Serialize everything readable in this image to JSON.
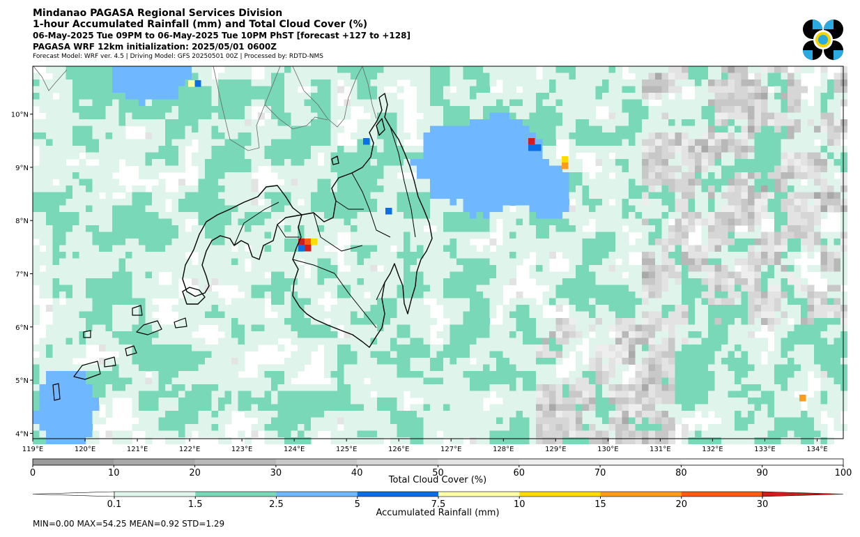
{
  "header": {
    "line1": "Mindanao PAGASA Regional Services Division",
    "line2": "1-hour Accumulated Rainfall (mm) and Total Cloud Cover (%)",
    "line3": "06-May-2025 Tue 09PM to 06-May-2025 Tue 10PM PhST [forecast +127 to +128]",
    "line4": "PAGASA WRF 12km initialization: 2025/05/01 0600Z",
    "line5": "Forecast Model: WRF ver. 4.5 | Driving Model: GFS 20250501 00Z | Processed by: RDTD-NMS"
  },
  "logo": {
    "name": "pagasa-logo"
  },
  "map": {
    "lon_labels": [
      "119°E",
      "120°E",
      "121°E",
      "122°E",
      "123°E",
      "124°E",
      "125°E",
      "126°E",
      "127°E",
      "128°E",
      "129°E",
      "130°E",
      "131°E",
      "132°E",
      "133°E",
      "134°E"
    ],
    "lat_labels": [
      "10°N",
      "9°N",
      "8°N",
      "7°N",
      "6°N",
      "5°N",
      "4°N"
    ],
    "lon_range": [
      119.0,
      134.5
    ],
    "lat_range": [
      3.9,
      10.9
    ],
    "land_outline_color": "#000000",
    "other_coast_color": "#555555"
  },
  "cloud_colorbar": {
    "title": "Total Cloud Cover (%)",
    "ticks": [
      "0",
      "10",
      "20",
      "30",
      "40",
      "50",
      "60",
      "70",
      "80",
      "90",
      "100"
    ],
    "colors": [
      "#9b9b9b",
      "#a9a9a9",
      "#b8b8b8",
      "#c8c8c8",
      "#d6d6d6",
      "#e3e3e3",
      "#eeeeee",
      "#f5f5f5",
      "#fbfbfb",
      "#ffffff"
    ]
  },
  "rain_colorbar": {
    "title": "Accumulated Rainfall (mm)",
    "ticks": [
      "0.1",
      "1.5",
      "2.5",
      "5",
      "7.5",
      "10",
      "15",
      "20",
      "30"
    ],
    "colors": [
      "#ffffff",
      "#dff5ec",
      "#78d8b8",
      "#6fb7ff",
      "#0a6ee6",
      "#ffffa8",
      "#ffdc00",
      "#ff9b1a",
      "#ff5a10",
      "#d11c1c"
    ]
  },
  "stats": "MIN=0.00   MAX=54.25   MEAN=0.92   STD=1.29"
}
